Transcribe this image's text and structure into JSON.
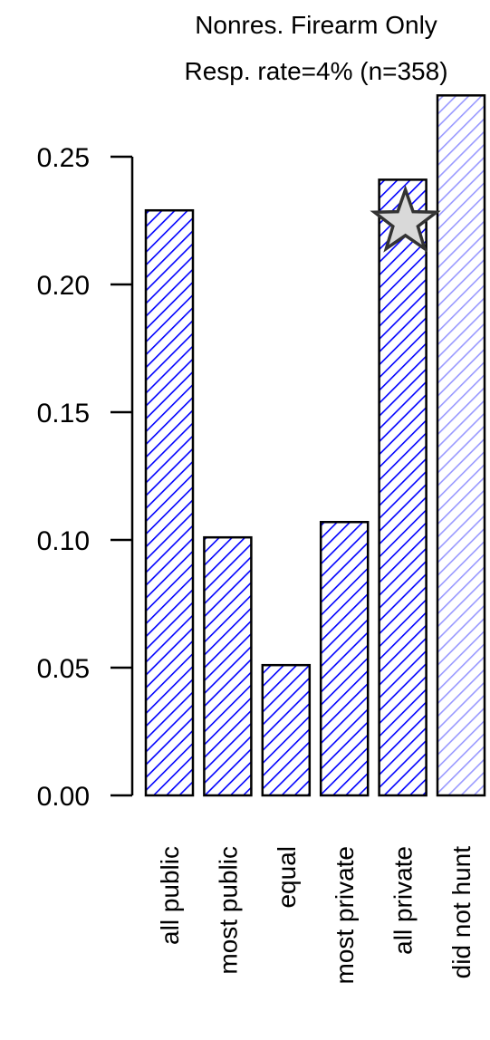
{
  "chart_data": {
    "type": "bar",
    "title": "Nonres. Firearm Only",
    "subtitle": "Resp. rate=4% (n=358)",
    "xlabel": "",
    "ylabel": "",
    "categories": [
      "all public",
      "most public",
      "equal",
      "most private",
      "all private",
      "did not hunt"
    ],
    "values": [
      0.229,
      0.101,
      0.051,
      0.107,
      0.241,
      0.274
    ],
    "ylim": [
      0,
      0.25
    ],
    "yticks": [
      "0.00",
      "0.05",
      "0.10",
      "0.15",
      "0.20",
      "0.25"
    ],
    "bar_color": "#0000ff",
    "light_bar_color": "#9999ff",
    "highlighted_category": "all private",
    "light_category": "did not hunt",
    "grid": false,
    "legend": "none"
  }
}
